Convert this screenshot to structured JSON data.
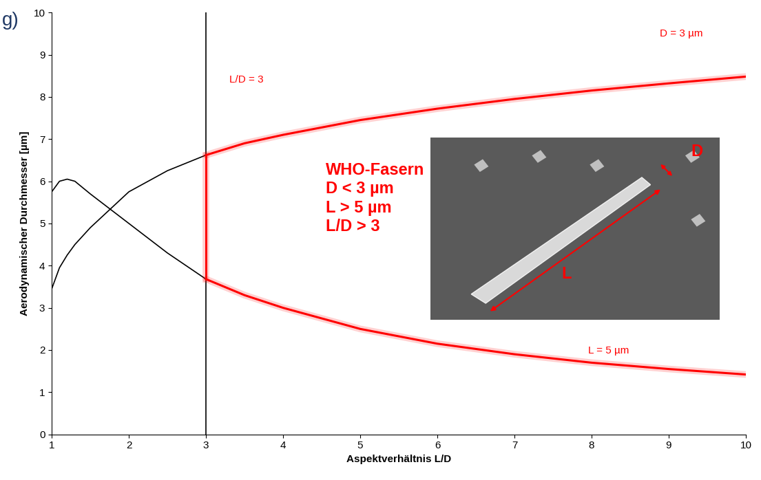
{
  "chart_data": {
    "type": "line",
    "panel_label": "g)",
    "x_label": "Aspektverhältnis L/D",
    "y_label": "Aerodynamischer Durchmesser [µm]",
    "x": [
      1,
      1.1,
      1.2,
      1.3,
      1.5,
      2,
      2.5,
      3,
      3.5,
      4,
      5,
      6,
      7,
      8,
      9,
      10
    ],
    "series": [
      {
        "color": "#000000",
        "values": [
          3.45,
          3.95,
          4.25,
          4.5,
          4.9,
          5.75,
          6.25,
          6.62,
          null,
          null,
          null,
          null,
          null,
          null,
          null,
          null
        ]
      },
      {
        "name": "D = 3 µm",
        "color": "#ff0000",
        "values": [
          null,
          null,
          null,
          null,
          null,
          null,
          null,
          6.62,
          6.9,
          7.1,
          7.45,
          7.72,
          7.95,
          8.15,
          8.32,
          8.48
        ]
      },
      {
        "color": "#000000",
        "values": [
          5.75,
          6.0,
          6.05,
          6.0,
          5.7,
          5.0,
          4.3,
          3.68,
          null,
          null,
          null,
          null,
          null,
          null,
          null,
          null
        ]
      },
      {
        "name": "L = 5 µm",
        "color": "#ff0000",
        "values": [
          null,
          null,
          null,
          null,
          null,
          null,
          null,
          3.68,
          3.3,
          3.0,
          2.5,
          2.15,
          1.9,
          1.7,
          1.55,
          1.42
        ]
      }
    ],
    "reference_line": {
      "x": 3,
      "label": "L/D = 3"
    },
    "annotation": [
      "WHO-Fasern",
      "D < 3 µm",
      "L > 5 µm",
      "L/D > 3"
    ],
    "inset_labels": {
      "length": "L",
      "diameter": "D"
    },
    "xlim": [
      1,
      10
    ],
    "ylim": [
      0,
      10
    ],
    "xticks": [
      1,
      2,
      3,
      4,
      5,
      6,
      7,
      8,
      9,
      10
    ],
    "yticks": [
      0,
      1,
      2,
      3,
      4,
      5,
      6,
      7,
      8,
      9,
      10
    ],
    "grid": false
  }
}
